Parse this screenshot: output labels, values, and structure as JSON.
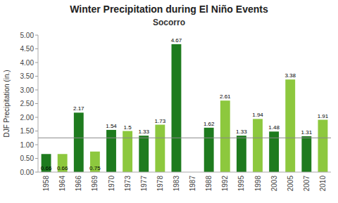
{
  "chart_data": {
    "type": "bar",
    "title": "Winter Precipitation during El Niño Events",
    "subtitle": "Socorro",
    "ylabel": "DJF Precipitation (in.)",
    "categories": [
      "1958",
      "1964",
      "1966",
      "1969",
      "1970",
      "1973",
      "1977",
      "1978",
      "1983",
      "1987",
      "1988",
      "1992",
      "1995",
      "1998",
      "2003",
      "2005",
      "2007",
      "2010"
    ],
    "values": [
      0.66,
      0.66,
      2.17,
      0.75,
      1.54,
      1.5,
      1.33,
      1.73,
      4.67,
      0.0,
      1.62,
      2.61,
      1.33,
      1.94,
      1.48,
      3.38,
      1.31,
      1.91
    ],
    "value_labels": [
      "0.66",
      "0.66",
      "2.17",
      "0.75",
      "1.54",
      "1.5",
      "1.33",
      "1.73",
      "4.67",
      null,
      "1.62",
      "2.61",
      "1.33",
      "1.94",
      "1.48",
      "3.38",
      "1.31",
      "1.91"
    ],
    "data_labels": true,
    "colors": [
      "#1e7b1e",
      "#8dc83e",
      "#1e7b1e",
      "#8dc83e",
      "#1e7b1e",
      "#8dc83e",
      "#1e7b1e",
      "#8dc83e",
      "#1e7b1e",
      "#8dc83e",
      "#1e7b1e",
      "#8dc83e",
      "#1e7b1e",
      "#8dc83e",
      "#1e7b1e",
      "#8dc83e",
      "#1e7b1e",
      "#8dc83e"
    ],
    "ref_line": 1.25,
    "ylim": [
      0.0,
      5.0
    ],
    "yticks": [
      {
        "value": 0.0,
        "label": "0.00"
      },
      {
        "value": 0.5,
        "label": "0.50"
      },
      {
        "value": 1.0,
        "label": "1.00"
      },
      {
        "value": 1.5,
        "label": "1.50"
      },
      {
        "value": 2.0,
        "label": "2.00"
      },
      {
        "value": 2.5,
        "label": "2.50"
      },
      {
        "value": 3.0,
        "label": "3.00"
      },
      {
        "value": 3.5,
        "label": "3.50"
      },
      {
        "value": 4.0,
        "label": "4.00"
      },
      {
        "value": 4.5,
        "label": "4.50"
      },
      {
        "value": 5.0,
        "label": "5.00"
      }
    ],
    "grid": false
  }
}
